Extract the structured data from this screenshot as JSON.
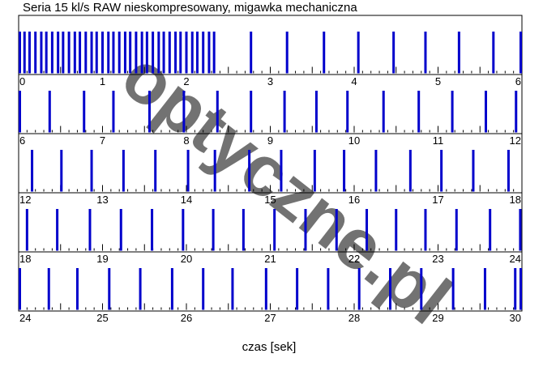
{
  "chart_data": {
    "type": "timeline",
    "title": "Seria 15 kl/s RAW nieskompresowany, migawka mechaniczna",
    "xlabel": "czas [sek]",
    "watermark": "optyczne.pl",
    "colors": {
      "shot": "#0000cc",
      "tick": "#000000",
      "frame": "#000000",
      "watermark": "#f6c6c6"
    },
    "grid": false,
    "minor_tick_step_s": 0.1,
    "rows": [
      {
        "range": [
          0,
          6
        ],
        "tick_labels": [
          "0",
          "1",
          "2",
          "3",
          "4",
          "5",
          "6"
        ],
        "shots": [
          0.0,
          0.07,
          0.13,
          0.2,
          0.27,
          0.33,
          0.4,
          0.47,
          0.53,
          0.6,
          0.67,
          0.73,
          0.8,
          0.87,
          0.93,
          1.0,
          1.07,
          1.13,
          1.2,
          1.27,
          1.33,
          1.4,
          1.47,
          1.53,
          1.6,
          1.67,
          1.73,
          1.8,
          1.87,
          1.93,
          2.0,
          2.07,
          2.13,
          2.2,
          2.27,
          2.33,
          2.77,
          3.2,
          3.64,
          4.05,
          4.47,
          4.85,
          5.25,
          5.66,
          6.06
        ]
      },
      {
        "range": [
          6,
          12
        ],
        "tick_labels": [
          "6",
          "7",
          "8",
          "9",
          "10",
          "11",
          "12"
        ],
        "shots": [
          6.0,
          6.37,
          6.78,
          7.13,
          7.56,
          7.97,
          8.37,
          8.77,
          9.17,
          9.55,
          9.92,
          10.35,
          10.77,
          11.17,
          11.57,
          11.93
        ]
      },
      {
        "range": [
          12,
          18
        ],
        "tick_labels": [
          "12",
          "13",
          "14",
          "15",
          "16",
          "17",
          "18"
        ],
        "shots": [
          12.16,
          12.51,
          12.87,
          13.25,
          13.63,
          14.02,
          14.34,
          14.75,
          15.13,
          15.53,
          15.88,
          16.26,
          16.67,
          17.04,
          17.42,
          17.84
        ]
      },
      {
        "range": [
          18,
          24
        ],
        "tick_labels": [
          "18",
          "19",
          "20",
          "21",
          "22",
          "23",
          "24"
        ],
        "shots": [
          18.1,
          18.46,
          18.85,
          19.22,
          19.59,
          19.96,
          20.32,
          20.68,
          21.05,
          21.42,
          21.79,
          22.15,
          22.5,
          22.85,
          23.22,
          23.62,
          23.98
        ]
      },
      {
        "range": [
          24,
          30
        ],
        "tick_labels": [
          "24",
          "25",
          "26",
          "27",
          "28",
          "29",
          "30"
        ],
        "shots": [
          24.0,
          24.36,
          24.7,
          25.08,
          25.45,
          25.83,
          26.2,
          26.55,
          26.95,
          27.32,
          27.69,
          28.06,
          28.43,
          28.8,
          29.18,
          29.56,
          29.92,
          30.01
        ]
      }
    ]
  }
}
